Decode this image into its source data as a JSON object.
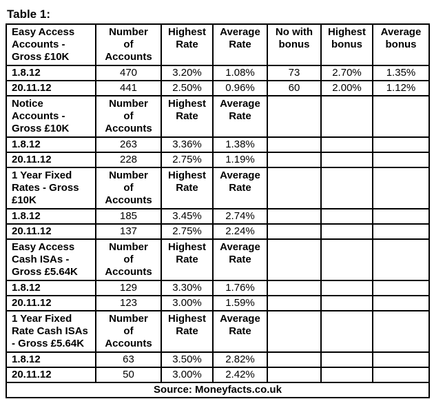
{
  "page": {
    "title": "Table 1:"
  },
  "table": {
    "sections": [
      {
        "label": "Easy Access\nAccounts -\nGross £10K",
        "headers": [
          "Number\nof\nAccounts",
          "Highest\nRate",
          "Average\nRate",
          "No with\nbonus",
          "Highest\nbonus",
          "Average\nbonus"
        ],
        "rows": [
          {
            "date": "1.8.12",
            "values": [
              "470",
              "3.20%",
              "1.08%",
              "73",
              "2.70%",
              "1.35%"
            ]
          },
          {
            "date": "20.11.12",
            "values": [
              "441",
              "2.50%",
              "0.96%",
              "60",
              "2.00%",
              "1.12%"
            ]
          }
        ]
      },
      {
        "label": "Notice\nAccounts -\nGross £10K",
        "headers": [
          "Number\nof\nAccounts",
          "Highest\nRate",
          "Average\nRate"
        ],
        "rows": [
          {
            "date": "1.8.12",
            "values": [
              "263",
              "3.36%",
              "1.38%"
            ]
          },
          {
            "date": "20.11.12",
            "values": [
              "228",
              "2.75%",
              "1.19%"
            ]
          }
        ]
      },
      {
        "label": "1 Year Fixed\nRates - Gross\n£10K",
        "headers": [
          "Number\nof\nAccounts",
          "Highest\nRate",
          "Average\nRate"
        ],
        "rows": [
          {
            "date": "1.8.12",
            "values": [
              "185",
              "3.45%",
              "2.74%"
            ]
          },
          {
            "date": "20.11.12",
            "values": [
              "137",
              "2.75%",
              "2.24%"
            ]
          }
        ]
      },
      {
        "label": "Easy Access\nCash ISAs -\nGross £5.64K",
        "headers": [
          "Number\nof\nAccounts",
          "Highest\nRate",
          "Average\nRate"
        ],
        "rows": [
          {
            "date": "1.8.12",
            "values": [
              "129",
              "3.30%",
              "1.76%"
            ]
          },
          {
            "date": "20.11.12",
            "values": [
              "123",
              "3.00%",
              "1.59%"
            ]
          }
        ]
      },
      {
        "label": "1 Year Fixed\nRate Cash ISAs\n- Gross £5.64K",
        "headers": [
          "Number\nof\nAccounts",
          "Highest\nRate",
          "Average\nRate"
        ],
        "rows": [
          {
            "date": "1.8.12",
            "values": [
              "63",
              "3.50%",
              "2.82%"
            ]
          },
          {
            "date": "20.11.12",
            "values": [
              "50",
              "3.00%",
              "2.42%"
            ]
          }
        ]
      }
    ],
    "footer": "Source: Moneyfacts.co.uk"
  }
}
